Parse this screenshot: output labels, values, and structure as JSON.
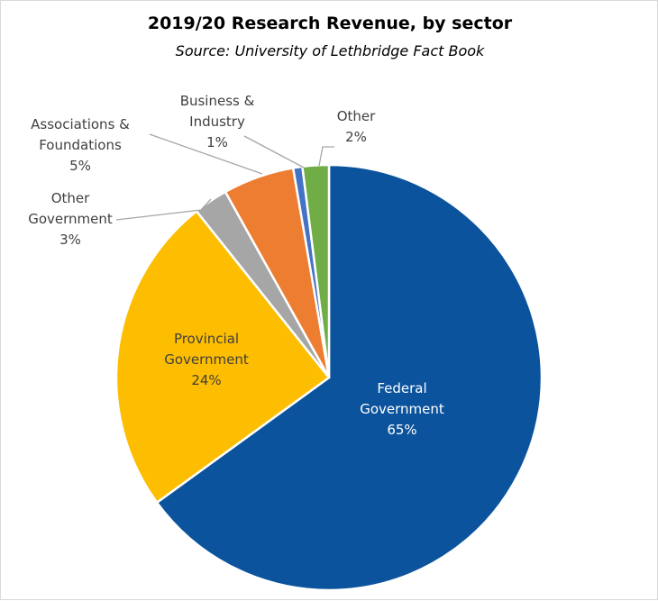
{
  "chart_data": {
    "type": "pie",
    "title": "2019/20 Research Revenue, by sector",
    "subtitle": "Source: University of Lethbridge Fact Book",
    "slices": [
      {
        "label_lines": [
          "Federal",
          "Government"
        ],
        "value_label": "65%",
        "value": 65.0,
        "color": "#0b539c",
        "label_color": "#ffffff",
        "label_placement": "inside"
      },
      {
        "label_lines": [
          "Provincial",
          "Government"
        ],
        "value_label": "24%",
        "value": 24.3,
        "color": "#fdbd00",
        "label_color": "#404040",
        "label_placement": "inside"
      },
      {
        "label_lines": [
          "Other",
          "Government"
        ],
        "value_label": "3%",
        "value": 2.6,
        "color": "#a6a6a6",
        "label_color": "#404040",
        "label_placement": "outside-left"
      },
      {
        "label_lines": [
          "Associations &",
          "Foundations"
        ],
        "value_label": "5%",
        "value": 5.4,
        "color": "#ed7d31",
        "label_color": "#404040",
        "label_placement": "outside-top-left"
      },
      {
        "label_lines": [
          "Business &",
          "Industry"
        ],
        "value_label": "1%",
        "value": 0.7,
        "color": "#4472c4",
        "label_color": "#404040",
        "label_placement": "outside-top"
      },
      {
        "label_lines": [
          "Other"
        ],
        "value_label": "2%",
        "value": 2.0,
        "color": "#70ad47",
        "label_color": "#404040",
        "label_placement": "outside-top-right"
      }
    ]
  }
}
